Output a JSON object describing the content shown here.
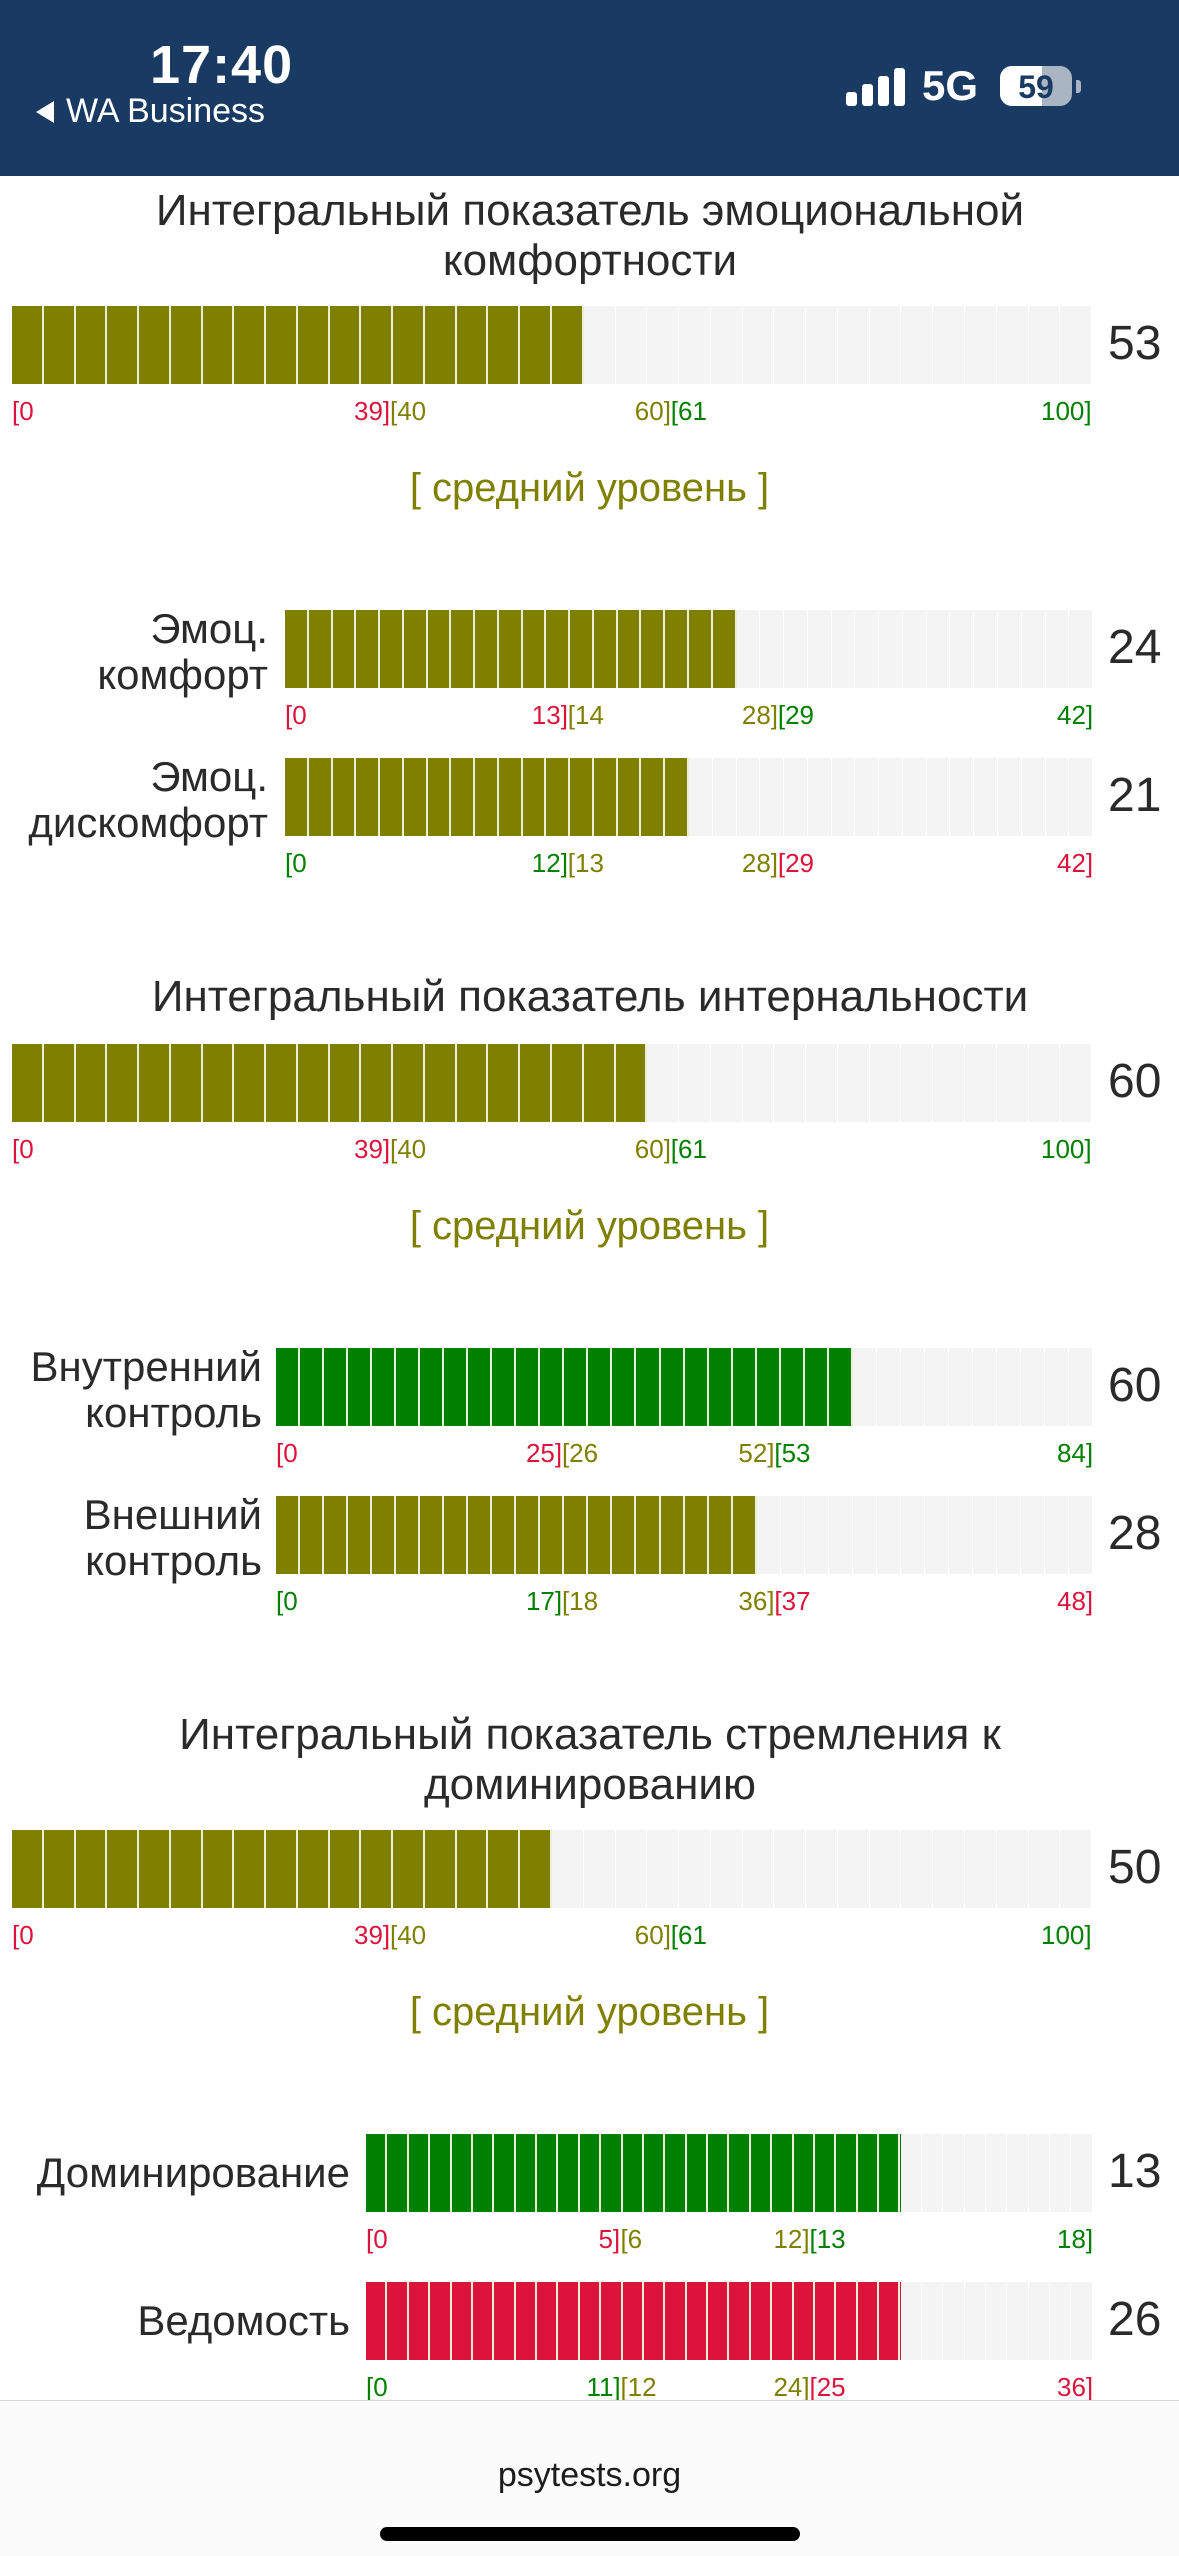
{
  "status_bar": {
    "time": "17:40",
    "back_app": "WA Business",
    "network": "5G",
    "battery": "59",
    "battery_level": 0.59,
    "background_color": "#183a63"
  },
  "colors": {
    "red": "#dc143c",
    "olive": "#808000",
    "green": "#008000",
    "track": "#f4f4f4"
  },
  "sections": [
    {
      "title": "Интегральный показатель эмоциональной комфортности",
      "value": "53",
      "fill_fraction": 0.53,
      "fill_color": "#808000",
      "ticks": [
        {
          "text": "[0",
          "color": "red"
        },
        {
          "text": "39]",
          "color": "red"
        },
        {
          "text": "[40",
          "color": "olive"
        },
        {
          "text": "60]",
          "color": "olive"
        },
        {
          "text": "[61",
          "color": "green"
        },
        {
          "text": "100]",
          "color": "green"
        }
      ],
      "level": "[ средний уровень ]",
      "subscales": [
        {
          "label_line1": "Эмоц.",
          "label_line2": "комфорт",
          "value": "24",
          "fill_fraction": 0.571,
          "fill_color": "#808000",
          "ticks": [
            {
              "text": "[0",
              "color": "red"
            },
            {
              "text": "13]",
              "color": "red"
            },
            {
              "text": "[14",
              "color": "olive"
            },
            {
              "text": "28]",
              "color": "olive"
            },
            {
              "text": "[29",
              "color": "green"
            },
            {
              "text": "42]",
              "color": "green"
            }
          ]
        },
        {
          "label_line1": "Эмоц.",
          "label_line2": "дискомфорт",
          "value": "21",
          "fill_fraction": 0.5,
          "fill_color": "#808000",
          "ticks": [
            {
              "text": "[0",
              "color": "green"
            },
            {
              "text": "12]",
              "color": "green"
            },
            {
              "text": "[13",
              "color": "olive"
            },
            {
              "text": "28]",
              "color": "olive"
            },
            {
              "text": "[29",
              "color": "red"
            },
            {
              "text": "42]",
              "color": "red"
            }
          ]
        }
      ]
    },
    {
      "title": "Интегральный показатель интернальности",
      "value": "60",
      "fill_fraction": 0.6,
      "fill_color": "#808000",
      "ticks": [
        {
          "text": "[0",
          "color": "red"
        },
        {
          "text": "39]",
          "color": "red"
        },
        {
          "text": "[40",
          "color": "olive"
        },
        {
          "text": "60]",
          "color": "olive"
        },
        {
          "text": "[61",
          "color": "green"
        },
        {
          "text": "100]",
          "color": "green"
        }
      ],
      "level": "[ средний уровень ]",
      "subscales": [
        {
          "label_line1": "Внутренний",
          "label_line2": "контроль",
          "value": "60",
          "fill_fraction": 0.714,
          "fill_color": "#008000",
          "ticks": [
            {
              "text": "[0",
              "color": "red"
            },
            {
              "text": "25]",
              "color": "red"
            },
            {
              "text": "[26",
              "color": "olive"
            },
            {
              "text": "52]",
              "color": "olive"
            },
            {
              "text": "[53",
              "color": "green"
            },
            {
              "text": "84]",
              "color": "green"
            }
          ]
        },
        {
          "label_line1": "Внешний",
          "label_line2": "контроль",
          "value": "28",
          "fill_fraction": 0.583,
          "fill_color": "#808000",
          "ticks": [
            {
              "text": "[0",
              "color": "green"
            },
            {
              "text": "17]",
              "color": "green"
            },
            {
              "text": "[18",
              "color": "olive"
            },
            {
              "text": "36]",
              "color": "olive"
            },
            {
              "text": "[37",
              "color": "red"
            },
            {
              "text": "48]",
              "color": "red"
            }
          ]
        }
      ]
    },
    {
      "title": "Интегральный показатель стремления к доминированию",
      "value": "50",
      "fill_fraction": 0.5,
      "fill_color": "#808000",
      "ticks": [
        {
          "text": "[0",
          "color": "red"
        },
        {
          "text": "39]",
          "color": "red"
        },
        {
          "text": "[40",
          "color": "olive"
        },
        {
          "text": "60]",
          "color": "olive"
        },
        {
          "text": "[61",
          "color": "green"
        },
        {
          "text": "100]",
          "color": "green"
        }
      ],
      "level": "[ средний уровень ]",
      "subscales": [
        {
          "label_line1": "Доминирование",
          "label_line2": "",
          "value": "13",
          "fill_fraction": 0.722,
          "fill_color": "#008000",
          "ticks": [
            {
              "text": "[0",
              "color": "red"
            },
            {
              "text": "5]",
              "color": "red"
            },
            {
              "text": "[6",
              "color": "olive"
            },
            {
              "text": "12]",
              "color": "olive"
            },
            {
              "text": "[13",
              "color": "green"
            },
            {
              "text": "18]",
              "color": "green"
            }
          ]
        },
        {
          "label_line1": "Ведомость",
          "label_line2": "",
          "value": "26",
          "fill_fraction": 0.722,
          "fill_color": "#dc143c",
          "ticks": [
            {
              "text": "[0",
              "color": "green"
            },
            {
              "text": "11]",
              "color": "green"
            },
            {
              "text": "[12",
              "color": "olive"
            },
            {
              "text": "24]",
              "color": "olive"
            },
            {
              "text": "[25",
              "color": "red"
            },
            {
              "text": "36]",
              "color": "red"
            }
          ]
        }
      ]
    }
  ],
  "footer": {
    "url": "psytests.org"
  }
}
